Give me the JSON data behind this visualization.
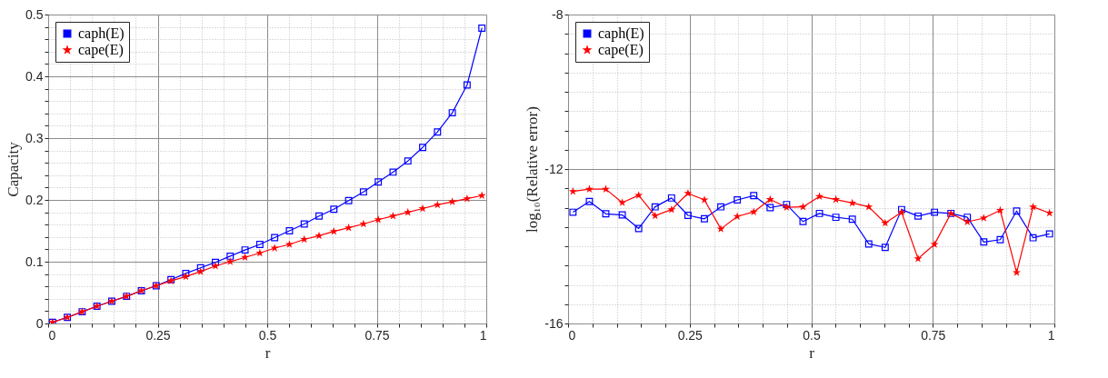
{
  "chart_data": [
    {
      "type": "line",
      "xlabel": "r",
      "ylabel": "Capacity",
      "legend": "top left",
      "grid": true,
      "x": [
        0.01,
        0.04379,
        0.07759,
        0.11138,
        0.14517,
        0.17897,
        0.21276,
        0.24655,
        0.28034,
        0.31414,
        0.34793,
        0.38172,
        0.41552,
        0.44931,
        0.4831,
        0.5169,
        0.55069,
        0.58448,
        0.61828,
        0.65207,
        0.68586,
        0.71966,
        0.75345,
        0.78724,
        0.82103,
        0.85483,
        0.88862,
        0.92241,
        0.95621,
        0.99
      ],
      "series": [
        {
          "name": "caph(E)",
          "color": "#0000ff",
          "marker": "square",
          "values": [
            0.002,
            0.01,
            0.019,
            0.028,
            0.036,
            0.044,
            0.053,
            0.061,
            0.071,
            0.081,
            0.09,
            0.099,
            0.109,
            0.119,
            0.128,
            0.139,
            0.15,
            0.161,
            0.174,
            0.185,
            0.199,
            0.213,
            0.229,
            0.245,
            0.263,
            0.285,
            0.31,
            0.341,
            0.386,
            0.478
          ]
        },
        {
          "name": "cape(E)",
          "color": "#ff0000",
          "marker": "star",
          "values": [
            0.002,
            0.01,
            0.019,
            0.028,
            0.036,
            0.044,
            0.053,
            0.061,
            0.069,
            0.076,
            0.084,
            0.093,
            0.1,
            0.107,
            0.114,
            0.122,
            0.128,
            0.136,
            0.142,
            0.149,
            0.155,
            0.161,
            0.168,
            0.174,
            0.18,
            0.186,
            0.192,
            0.197,
            0.202,
            0.207
          ]
        }
      ],
      "xlim": [
        0,
        1
      ],
      "xticks": [
        0,
        {
          "value": 0.05,
          "label": null
        },
        {
          "value": 0.1,
          "label": null
        },
        {
          "value": 0.15,
          "label": null
        },
        {
          "value": 0.2,
          "label": null
        },
        0.25,
        {
          "value": 0.3,
          "label": null
        },
        {
          "value": 0.35,
          "label": null
        },
        {
          "value": 0.4,
          "label": null
        },
        {
          "value": 0.45,
          "label": null
        },
        0.5,
        {
          "value": 0.55,
          "label": null
        },
        {
          "value": 0.6,
          "label": null
        },
        {
          "value": 0.65,
          "label": null
        },
        {
          "value": 0.7,
          "label": null
        },
        0.75,
        {
          "value": 0.8,
          "label": null
        },
        {
          "value": 0.85,
          "label": null
        },
        {
          "value": 0.9,
          "label": null
        },
        {
          "value": 0.95,
          "label": null
        },
        1
      ],
      "ylim": [
        0,
        0.5
      ],
      "yticks": [
        0,
        {
          "value": 0.02,
          "label": null
        },
        {
          "value": 0.04,
          "label": null
        },
        {
          "value": 0.06,
          "label": null
        },
        {
          "value": 0.08,
          "label": null
        },
        0.1,
        {
          "value": 0.12,
          "label": null
        },
        {
          "value": 0.14,
          "label": null
        },
        {
          "value": 0.16,
          "label": null
        },
        {
          "value": 0.18,
          "label": null
        },
        0.2,
        {
          "value": 0.22,
          "label": null
        },
        {
          "value": 0.24,
          "label": null
        },
        {
          "value": 0.26,
          "label": null
        },
        {
          "value": 0.28,
          "label": null
        },
        0.3,
        {
          "value": 0.32,
          "label": null
        },
        {
          "value": 0.34,
          "label": null
        },
        {
          "value": 0.36,
          "label": null
        },
        {
          "value": 0.38,
          "label": null
        },
        0.4,
        {
          "value": 0.42,
          "label": null
        },
        {
          "value": 0.44,
          "label": null
        },
        {
          "value": 0.46,
          "label": null
        },
        {
          "value": 0.48,
          "label": null
        },
        0.5
      ]
    },
    {
      "type": "line",
      "xlabel": "r",
      "ylabel": "log₁₀(Relative error)",
      "legend": "top left",
      "grid": true,
      "x": [
        0.01,
        0.04379,
        0.07759,
        0.11138,
        0.14517,
        0.17897,
        0.21276,
        0.24655,
        0.28034,
        0.31414,
        0.34793,
        0.38172,
        0.41552,
        0.44931,
        0.4831,
        0.5169,
        0.55069,
        0.58448,
        0.61828,
        0.65207,
        0.68586,
        0.71966,
        0.75345,
        0.78724,
        0.82103,
        0.85483,
        0.88862,
        0.92241,
        0.95621,
        0.99
      ],
      "series": [
        {
          "name": "caph(E)",
          "color": "#0000ff",
          "marker": "square",
          "values": [
            -13.12,
            -12.84,
            -13.16,
            -13.19,
            -13.54,
            -12.98,
            -12.75,
            -13.2,
            -13.29,
            -12.98,
            -12.8,
            -12.69,
            -13.0,
            -12.92,
            -13.36,
            -13.15,
            -13.25,
            -13.3,
            -13.94,
            -14.03,
            -13.05,
            -13.22,
            -13.12,
            -13.15,
            -13.25,
            -13.89,
            -13.83,
            -13.09,
            -13.78,
            -13.68
          ]
        },
        {
          "name": "cape(E)",
          "color": "#ff0000",
          "marker": "star",
          "values": [
            -12.58,
            -12.52,
            -12.52,
            -12.87,
            -12.68,
            -13.21,
            -13.05,
            -12.63,
            -12.8,
            -13.55,
            -13.23,
            -13.11,
            -12.79,
            -12.99,
            -12.98,
            -12.71,
            -12.79,
            -12.88,
            -12.98,
            -13.4,
            -13.12,
            -14.32,
            -13.95,
            -13.15,
            -13.37,
            -13.27,
            -13.07,
            -14.68,
            -12.98,
            -13.14
          ]
        }
      ],
      "xlim": [
        0,
        1
      ],
      "xticks": [
        0,
        {
          "value": 0.05,
          "label": null
        },
        {
          "value": 0.1,
          "label": null
        },
        {
          "value": 0.15,
          "label": null
        },
        {
          "value": 0.2,
          "label": null
        },
        0.25,
        {
          "value": 0.3,
          "label": null
        },
        {
          "value": 0.35,
          "label": null
        },
        {
          "value": 0.4,
          "label": null
        },
        {
          "value": 0.45,
          "label": null
        },
        0.5,
        {
          "value": 0.55,
          "label": null
        },
        {
          "value": 0.6,
          "label": null
        },
        {
          "value": 0.65,
          "label": null
        },
        {
          "value": 0.7,
          "label": null
        },
        0.75,
        {
          "value": 0.8,
          "label": null
        },
        {
          "value": 0.85,
          "label": null
        },
        {
          "value": 0.9,
          "label": null
        },
        {
          "value": 0.95,
          "label": null
        },
        1
      ],
      "ylim": [
        -16,
        -8
      ],
      "yticks": [
        -16,
        {
          "value": -15.5,
          "label": null
        },
        {
          "value": -15,
          "label": null
        },
        {
          "value": -14.5,
          "label": null
        },
        {
          "value": -14,
          "label": null
        },
        {
          "value": -13.5,
          "label": null
        },
        {
          "value": -13,
          "label": null
        },
        {
          "value": -12.5,
          "label": null
        },
        -12,
        {
          "value": -11.5,
          "label": null
        },
        {
          "value": -11,
          "label": null
        },
        {
          "value": -10.5,
          "label": null
        },
        {
          "value": -10,
          "label": null
        },
        {
          "value": -9.5,
          "label": null
        },
        {
          "value": -9,
          "label": null
        },
        {
          "value": -8.5,
          "label": null
        },
        -8
      ]
    }
  ]
}
